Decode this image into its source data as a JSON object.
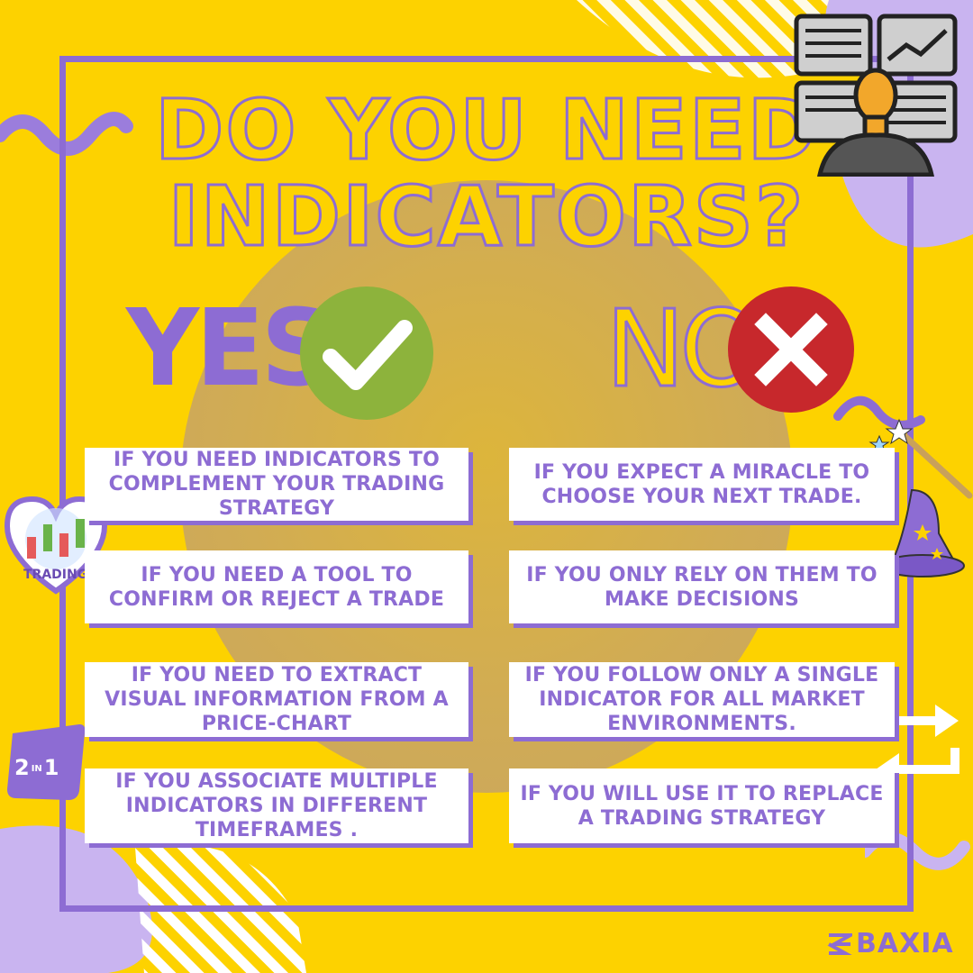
{
  "title": {
    "line1": "DO YOU NEED",
    "line2": "INDICATORS?"
  },
  "yes": {
    "label": "YES",
    "items": [
      "IF YOU NEED INDICATORS TO COMPLEMENT YOUR TRADING STRATEGY",
      "IF YOU NEED A TOOL TO CONFIRM OR REJECT A TRADE",
      "IF YOU NEED TO EXTRACT VISUAL INFORMATION FROM A PRICE-CHART",
      "IF YOU ASSOCIATE MULTIPLE INDICATORS IN DIFFERENT TIMEFRAMES ."
    ]
  },
  "no": {
    "label": "NO",
    "items": [
      "IF YOU EXPECT A MIRACLE TO CHOOSE YOUR NEXT TRADE.",
      "IF YOU ONLY RELY ON THEM TO MAKE DECISIONS",
      "IF YOU FOLLOW ONLY A SINGLE INDICATOR FOR ALL MARKET ENVIRONMENTS.",
      "IF YOU WILL USE IT TO REPLACE A TRADING STRATEGY"
    ]
  },
  "badges": {
    "trading": "TRADING",
    "two_in_one_a": "2",
    "two_in_one_b": "1",
    "two_in_one_mid": "IN"
  },
  "brand": {
    "name": "BAXIA"
  },
  "icons": {
    "yes_icon": "check-icon",
    "no_icon": "x-icon",
    "trader": "trader-monitors-icon",
    "wizard": "wizard-hat-wand-icon",
    "swap": "swap-arrows-icon",
    "heart": "trading-heart-icon"
  },
  "colors": {
    "background": "#FDD200",
    "accent": "#8D6CD3",
    "yes_green": "#8DB33C",
    "no_red": "#C7282C"
  }
}
